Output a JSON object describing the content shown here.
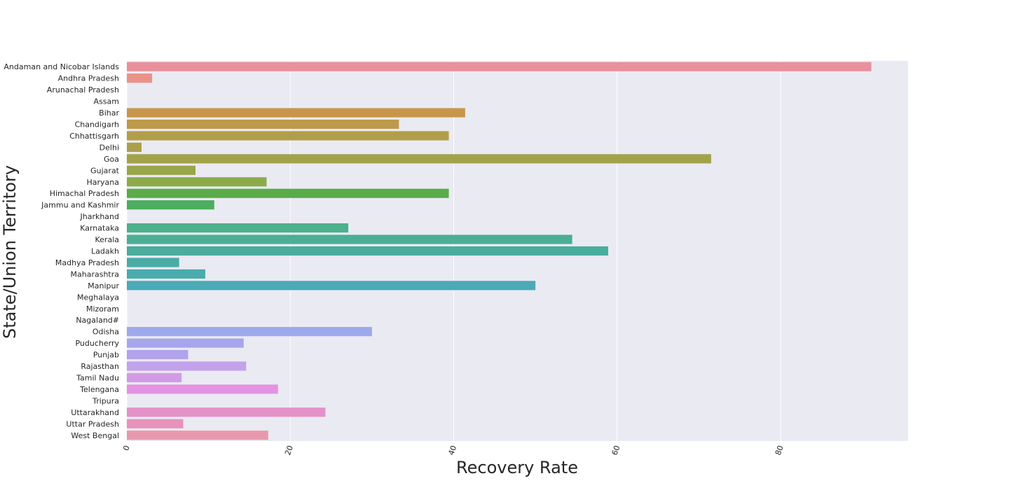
{
  "chart_data": {
    "type": "bar",
    "orientation": "horizontal",
    "xlabel": "Recovery Rate",
    "ylabel": "State/Union Territory",
    "xlim": [
      0,
      95.6
    ],
    "xticks": [
      0,
      20,
      40,
      60,
      80
    ],
    "grid": true,
    "legend": "none",
    "background": "#eaeaf2",
    "categories": [
      "Andaman and Nicobar Islands",
      "Andhra Pradesh",
      "Arunachal Pradesh",
      "Assam",
      "Bihar",
      "Chandigarh",
      "Chhattisgarh",
      "Delhi",
      "Goa",
      "Gujarat",
      "Haryana",
      "Himachal Pradesh",
      "Jammu and Kashmir",
      "Jharkhand",
      "Karnataka",
      "Kerala",
      "Ladakh",
      "Madhya Pradesh",
      "Maharashtra",
      "Manipur",
      "Meghalaya",
      "Mizoram",
      "Nagaland#",
      "Odisha",
      "Puducherry",
      "Punjab",
      "Rajasthan",
      "Tamil Nadu",
      "Telengana",
      "Tripura",
      "Uttarakhand",
      "Uttar Pradesh",
      "West Bengal"
    ],
    "values": [
      91.1,
      3.1,
      0,
      0,
      41.4,
      33.3,
      39.4,
      1.8,
      71.5,
      8.4,
      17.1,
      39.4,
      10.7,
      0,
      27.1,
      54.5,
      58.9,
      6.4,
      9.6,
      50.0,
      0,
      0,
      0,
      30.0,
      14.3,
      7.5,
      14.6,
      6.7,
      18.5,
      0,
      24.3,
      6.9,
      17.3
    ],
    "colors": [
      "#e8919c",
      "#e8928a",
      "#d89c5a",
      "#d09a4c",
      "#c8964a",
      "#bc9a4a",
      "#b29e4a",
      "#aaa04a",
      "#a2a24a",
      "#99a64a",
      "#8daa4a",
      "#5aab4a",
      "#4cae5e",
      "#4bb07e",
      "#4cb08c",
      "#4bae95",
      "#4aad9e",
      "#49aca6",
      "#4aabae",
      "#4aaab6",
      "#8aa8d6",
      "#95a8e6",
      "#9aa6e8",
      "#9ea8ec",
      "#a7a6ec",
      "#b2a3ec",
      "#c2a2ea",
      "#d49ae6",
      "#e492e2",
      "#e290d6",
      "#e491c8",
      "#e793bc",
      "#e898ac"
    ]
  }
}
